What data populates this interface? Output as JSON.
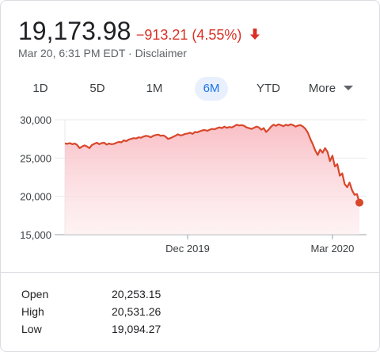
{
  "quote": {
    "price": "19,173.98",
    "change": "−913.21 (4.55%)",
    "direction": "down",
    "timestamp": "Mar 20, 6:31 PM EDT",
    "separator": " · ",
    "disclaimer": "Disclaimer"
  },
  "tabs": [
    {
      "label": "1D",
      "active": false
    },
    {
      "label": "5D",
      "active": false
    },
    {
      "label": "1M",
      "active": false
    },
    {
      "label": "6M",
      "active": true
    },
    {
      "label": "YTD",
      "active": false
    },
    {
      "label": "More",
      "active": false
    }
  ],
  "colors": {
    "line": "#d9472b",
    "fill": "#f8c1c6",
    "negative": "#d93025",
    "active_tab_bg": "#e8f0fe",
    "active_tab_text": "#1a73e8"
  },
  "chart_data": {
    "type": "area",
    "y_ticks": [
      "30,000",
      "25,000",
      "20,000",
      "15,000"
    ],
    "y_tick_values": [
      30000,
      25000,
      20000,
      15000
    ],
    "ylim": [
      15000,
      30000
    ],
    "x_ticks": [
      "Dec 2019",
      "Mar 2020"
    ],
    "x_tick_index": [
      50,
      109
    ],
    "grid": true,
    "series": [
      {
        "values": [
          26900,
          26850,
          26950,
          26800,
          26900,
          26700,
          26300,
          26500,
          26650,
          26500,
          26300,
          26700,
          26850,
          27000,
          26800,
          26950,
          27000,
          26750,
          26900,
          26800,
          26850,
          27000,
          27100,
          27050,
          27300,
          27200,
          27400,
          27500,
          27600,
          27550,
          27700,
          27650,
          27800,
          27900,
          27850,
          27700,
          27900,
          28000,
          28050,
          27900,
          27950,
          27800,
          27500,
          27600,
          27750,
          27900,
          28100,
          27950,
          28000,
          28150,
          28200,
          28300,
          28150,
          28400,
          28350,
          28500,
          28600,
          28650,
          28550,
          28700,
          28800,
          28750,
          28900,
          29000,
          28900,
          29100,
          28950,
          29050,
          29000,
          29150,
          29350,
          29250,
          29300,
          29200,
          29000,
          28900,
          28800,
          28950,
          29100,
          29000,
          28700,
          28900,
          28400,
          28700,
          29100,
          29350,
          29200,
          29400,
          29300,
          29150,
          29350,
          29250,
          29400,
          29300,
          29100,
          29250,
          29300,
          29100,
          28800,
          28300,
          27500,
          26800,
          26000,
          25400,
          26100,
          25700,
          26300,
          25800,
          24600,
          25300,
          23900,
          24200,
          22700,
          23000,
          21600,
          21200,
          21800,
          20800,
          20200,
          20300,
          19174
        ],
        "last_value": 19173.98
      }
    ]
  },
  "stats": [
    {
      "label": "Open",
      "value": "20,253.15"
    },
    {
      "label": "High",
      "value": "20,531.26"
    },
    {
      "label": "Low",
      "value": "19,094.27"
    }
  ]
}
